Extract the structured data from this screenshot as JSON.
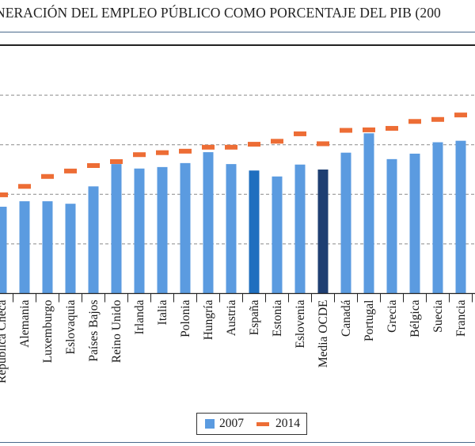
{
  "title": "NERACIÓN DEL EMPLEO PÚBLICO COMO PORCENTAJE DEL PIB (200",
  "legend": {
    "series_2007": "2007",
    "series_2014": "2014"
  },
  "colors": {
    "bar": "#5b9be0",
    "bar_spain": "#1f6fbf",
    "bar_oecd": "#1f3f72",
    "dash": "#ed6d35",
    "grid": "#8a8a8a"
  },
  "chart_data": {
    "type": "bar",
    "title": "NERACIÓN DEL EMPLEO PÚBLICO COMO PORCENTAJE DEL PIB (200",
    "xlabel": "",
    "ylabel": "",
    "y_units_note": "Y-axis tick labels are cropped out; values expressed in gridline units (baseline 0, gridlines at 1,2,3,4)",
    "ylim": [
      0,
      5
    ],
    "gridlines": [
      1,
      2,
      3,
      4
    ],
    "grid": true,
    "legend_position": "bottom-center",
    "categories": [
      "República Checa",
      "Alemania",
      "Luxemburgo",
      "Eslovaquia",
      "Países Bajos",
      "Reino Unido",
      "Irlanda",
      "Italia",
      "Polonia",
      "Hungría",
      "Austria",
      "España",
      "Estonia",
      "Eslovenia",
      "Media OCDE",
      "Canadá",
      "Portugal",
      "Grecia",
      "Bélgica",
      "Suecia",
      "Francia"
    ],
    "series": [
      {
        "name": "2007",
        "type": "bar",
        "values": [
          1.75,
          1.86,
          1.86,
          1.81,
          2.16,
          2.61,
          2.52,
          2.55,
          2.63,
          2.85,
          2.61,
          2.48,
          2.36,
          2.6,
          2.5,
          2.84,
          3.23,
          2.71,
          2.82,
          3.05,
          3.08
        ]
      },
      {
        "name": "2014",
        "type": "marker-dash",
        "values": [
          1.99,
          2.16,
          2.36,
          2.47,
          2.58,
          2.66,
          2.8,
          2.84,
          2.87,
          2.95,
          2.95,
          3.01,
          3.07,
          3.22,
          3.02,
          3.29,
          3.3,
          3.33,
          3.47,
          3.51,
          3.6
        ]
      }
    ],
    "highlighted": {
      "España": "bar_spain",
      "Media OCDE": "bar_oecd"
    }
  }
}
